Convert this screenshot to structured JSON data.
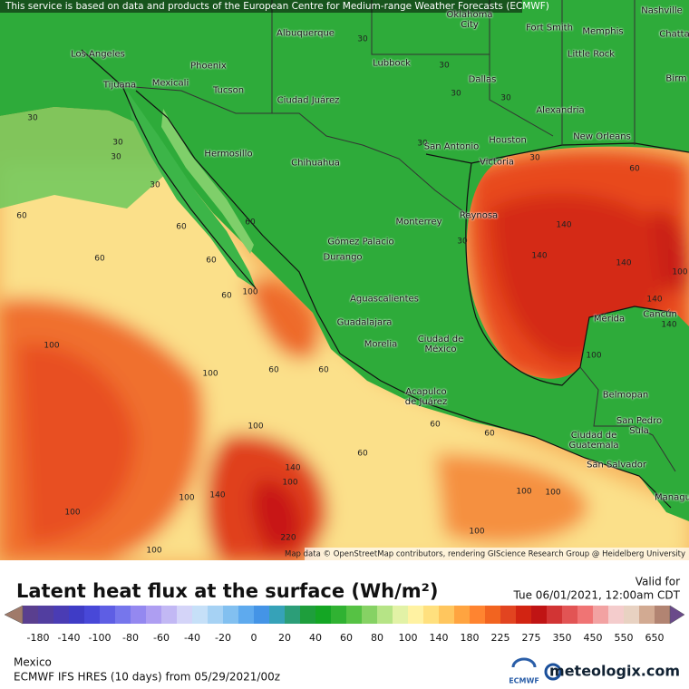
{
  "attribution_top": "This service is based on data and products of the European Centre for Medium-range Weather Forecasts (ECMWF)",
  "attribution_bottom": "Map data © OpenStreetMap contributors, rendering GIScience Research Group @ Heidelberg University",
  "cities": [
    "Los Angeles",
    "Tijuana",
    "Mexicali",
    "Phoenix",
    "Tucson",
    "Albuquerque",
    "Lubbock",
    "Oklahoma\nCity",
    "Fort Smith",
    "Memphis",
    "Nashville",
    "Chatta",
    "Little Rock",
    "Birm",
    "Dallas",
    "Alexandria",
    "Ciudad Juárez",
    "Hermosillo",
    "Chihuahua",
    "San Antonio",
    "Houston",
    "New Orleans",
    "Victoria",
    "Monterrey",
    "Reynosa",
    "Gómez Palacio",
    "Durango",
    "Aguascalientes",
    "Guadalajara",
    "Morelia",
    "Ciudad de\nMéxico",
    "Acapulco\nde Juárez",
    "Mérida",
    "Cancún",
    "Belmopan",
    "San Pedro\nSula",
    "Ciudad de\nGuatemala",
    "San Salvador",
    "Managu"
  ],
  "contour_labels": [
    30,
    30,
    30,
    30,
    30,
    30,
    30,
    30,
    30,
    30,
    30,
    60,
    60,
    60,
    60,
    60,
    60,
    100,
    60,
    60,
    100,
    100,
    100,
    60,
    100,
    140,
    140,
    100,
    220,
    100,
    100,
    140,
    140,
    140,
    140,
    100,
    100,
    60,
    100,
    100,
    60,
    60,
    100,
    140
  ],
  "title": "Latent heat flux at the surface (Wh/m²)",
  "valid_label": "Valid for",
  "valid_time": "Tue 06/01/2021, 12:00am CDT",
  "legend": {
    "ticks": [
      -180,
      -140,
      -100,
      -80,
      -60,
      -40,
      -20,
      0,
      20,
      40,
      60,
      80,
      100,
      140,
      180,
      225,
      275,
      350,
      450,
      550,
      650
    ],
    "colors": [
      "#5a3f8f",
      "#523ea0",
      "#4a3cb4",
      "#3f3cc6",
      "#4848d8",
      "#5e5ee4",
      "#7676ec",
      "#9488f0",
      "#ae9ef2",
      "#c2b8f4",
      "#d4d4f8",
      "#c6e0f8",
      "#a6d2f4",
      "#82c0f0",
      "#5eaaee",
      "#4494e6",
      "#36a2b8",
      "#2c9e78",
      "#1e9e3c",
      "#14a624",
      "#30b232",
      "#56c244",
      "#86d264",
      "#b6e486",
      "#e2f2a6",
      "#fff2a2",
      "#ffe07e",
      "#ffc65e",
      "#ffa440",
      "#ff8430",
      "#f26420",
      "#e24420",
      "#d22412",
      "#c01414",
      "#d23434",
      "#e25454",
      "#f07474",
      "#f2a2a2",
      "#f4cccc",
      "#e8d2c2",
      "#d2aa92",
      "#b28472"
    ]
  },
  "region": "Mexico",
  "model": "ECMWF IFS HRES (10 days) from 05/29/2021/00z",
  "logo_left": "ECMWF",
  "logo_right": "meteologix.com"
}
